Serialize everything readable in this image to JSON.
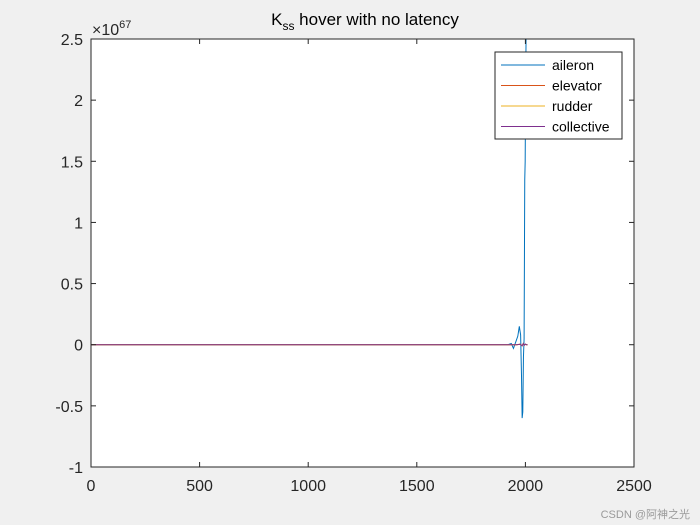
{
  "chart_data": {
    "type": "line",
    "title": {
      "main": "K",
      "sub": "ss",
      "rest": " hover with no latency"
    },
    "xlabel": "",
    "ylabel": "",
    "xlim": [
      0,
      2500
    ],
    "ylim": [
      -1,
      2.5
    ],
    "y_exponent": {
      "base": "×10",
      "power": "67"
    },
    "x_ticks": [
      0,
      500,
      1000,
      1500,
      2000,
      2500
    ],
    "x_tick_labels": [
      "0",
      "500",
      "1000",
      "1500",
      "2000",
      "2500"
    ],
    "y_ticks": [
      -1,
      -0.5,
      0,
      0.5,
      1,
      1.5,
      2,
      2.5
    ],
    "y_tick_labels": [
      "-1",
      "-0.5",
      "0",
      "0.5",
      "1",
      "1.5",
      "2",
      "2.5"
    ],
    "grid": false,
    "legend_position": "top-right",
    "series": [
      {
        "name": "aileron",
        "color": "#0072bd",
        "x": [
          0,
          1920,
          1935,
          1945,
          1955,
          1965,
          1972,
          1978,
          1982,
          1985,
          1988,
          1991,
          1994,
          1997,
          1999,
          2001,
          2003,
          2005,
          2007,
          2010
        ],
        "y": [
          0,
          0,
          0.01,
          -0.03,
          0.02,
          0.07,
          0.15,
          0.08,
          -0.25,
          -0.6,
          -0.55,
          -0.1,
          0.05,
          1.35,
          1.5,
          2.1,
          2.5,
          2.5,
          2.5,
          2.5
        ]
      },
      {
        "name": "elevator",
        "color": "#d95319",
        "x": [
          0,
          1960,
          1975,
          1985,
          1990,
          1995,
          2000,
          2005,
          2010
        ],
        "y": [
          0,
          0,
          0.005,
          -0.01,
          0.01,
          -0.005,
          0.005,
          0,
          0
        ]
      },
      {
        "name": "rudder",
        "color": "#edb120",
        "x": [
          0,
          1960,
          1975,
          1985,
          1990,
          1995,
          2000,
          2005,
          2010
        ],
        "y": [
          0,
          0,
          0.003,
          -0.006,
          0.006,
          -0.003,
          0.004,
          0,
          0
        ]
      },
      {
        "name": "collective",
        "color": "#7e2f8e",
        "x": [
          0,
          1960,
          1975,
          1985,
          1990,
          1995,
          2000,
          2005,
          2010
        ],
        "y": [
          0,
          0,
          0.004,
          -0.008,
          0.008,
          -0.004,
          0.005,
          0,
          0
        ]
      }
    ]
  },
  "watermark": "CSDN @阿神之光"
}
